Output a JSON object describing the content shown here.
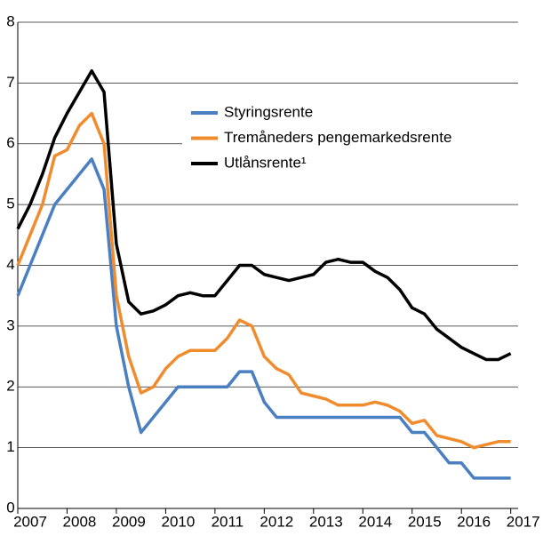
{
  "chart_data": {
    "type": "line",
    "x": [
      2007,
      2007.25,
      2007.5,
      2007.75,
      2008,
      2008.25,
      2008.5,
      2008.75,
      2009,
      2009.25,
      2009.5,
      2009.75,
      2010,
      2010.25,
      2010.5,
      2010.75,
      2011,
      2011.25,
      2011.5,
      2011.75,
      2012,
      2012.25,
      2012.5,
      2012.75,
      2013,
      2013.25,
      2013.5,
      2013.75,
      2014,
      2014.25,
      2014.5,
      2014.75,
      2015,
      2015.25,
      2015.5,
      2015.75,
      2016,
      2016.25,
      2016.5,
      2016.75,
      2017
    ],
    "series": [
      {
        "name": "Styringsrente",
        "color": "#4a7fc1",
        "values": [
          3.5,
          4.0,
          4.5,
          5.0,
          5.25,
          5.5,
          5.75,
          5.25,
          3.0,
          2.0,
          1.25,
          1.5,
          1.75,
          2.0,
          2.0,
          2.0,
          2.0,
          2.0,
          2.25,
          2.25,
          1.75,
          1.5,
          1.5,
          1.5,
          1.5,
          1.5,
          1.5,
          1.5,
          1.5,
          1.5,
          1.5,
          1.5,
          1.25,
          1.25,
          1.0,
          0.75,
          0.75,
          0.5,
          0.5,
          0.5,
          0.5
        ]
      },
      {
        "name": "Tremåneders pengemarkedsrente",
        "color": "#f08c2e",
        "values": [
          4.0,
          4.5,
          5.0,
          5.8,
          5.9,
          6.3,
          6.5,
          6.0,
          3.5,
          2.5,
          1.9,
          2.0,
          2.3,
          2.5,
          2.6,
          2.6,
          2.6,
          2.8,
          3.1,
          3.0,
          2.5,
          2.3,
          2.2,
          1.9,
          1.85,
          1.8,
          1.7,
          1.7,
          1.7,
          1.75,
          1.7,
          1.6,
          1.4,
          1.45,
          1.2,
          1.15,
          1.1,
          1.0,
          1.05,
          1.1,
          1.1
        ]
      },
      {
        "name": "Utlånsrente¹",
        "color": "#000000",
        "values": [
          4.6,
          5.0,
          5.5,
          6.1,
          6.5,
          6.85,
          7.2,
          6.85,
          4.35,
          3.4,
          3.2,
          3.25,
          3.35,
          3.5,
          3.55,
          3.5,
          3.5,
          3.75,
          4.0,
          4.0,
          3.85,
          3.8,
          3.75,
          3.8,
          3.85,
          4.05,
          4.1,
          4.05,
          4.05,
          3.9,
          3.8,
          3.6,
          3.3,
          3.2,
          2.95,
          2.8,
          2.65,
          2.55,
          2.45,
          2.45,
          2.55
        ]
      }
    ],
    "xlim": [
      2007,
      2017.15
    ],
    "xticks": [
      2007,
      2008,
      2009,
      2010,
      2011,
      2012,
      2013,
      2014,
      2015,
      2016,
      2017
    ],
    "ylim": [
      0,
      8
    ],
    "yticks": [
      0,
      1,
      2,
      3,
      4,
      5,
      6,
      7,
      8
    ],
    "grid": true
  }
}
